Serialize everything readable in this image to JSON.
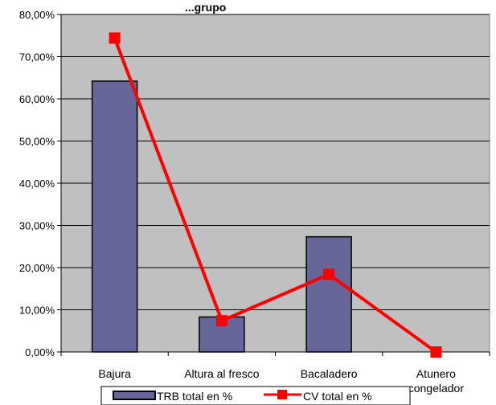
{
  "chart_data": {
    "type": "bar",
    "title": "...grupo",
    "xlabel": "",
    "ylabel": "",
    "categories": [
      "Bajura",
      "Altura al fresco",
      "Bacaladero",
      "Atunero congelador"
    ],
    "category_labels": [
      [
        "Bajura"
      ],
      [
        "Altura al fresco"
      ],
      [
        "Bacaladero"
      ],
      [
        "Atunero",
        "congelador"
      ]
    ],
    "ylim": [
      0,
      80
    ],
    "y_ticks": [
      "0,00%",
      "10,00%",
      "20,00%",
      "30,00%",
      "40,00%",
      "50,00%",
      "60,00%",
      "70,00%",
      "80,00%"
    ],
    "grid": true,
    "legend_position": "bottom",
    "series": [
      {
        "name": "TRB total en %",
        "type": "bar",
        "values": [
          64.2,
          8.3,
          27.3,
          0.0
        ],
        "color": "#666699"
      },
      {
        "name": "CV total en %",
        "type": "line",
        "values": [
          74.4,
          7.4,
          18.4,
          0.0
        ],
        "color": "#ff0000"
      }
    ],
    "plot_background": "#c0c0c0"
  }
}
